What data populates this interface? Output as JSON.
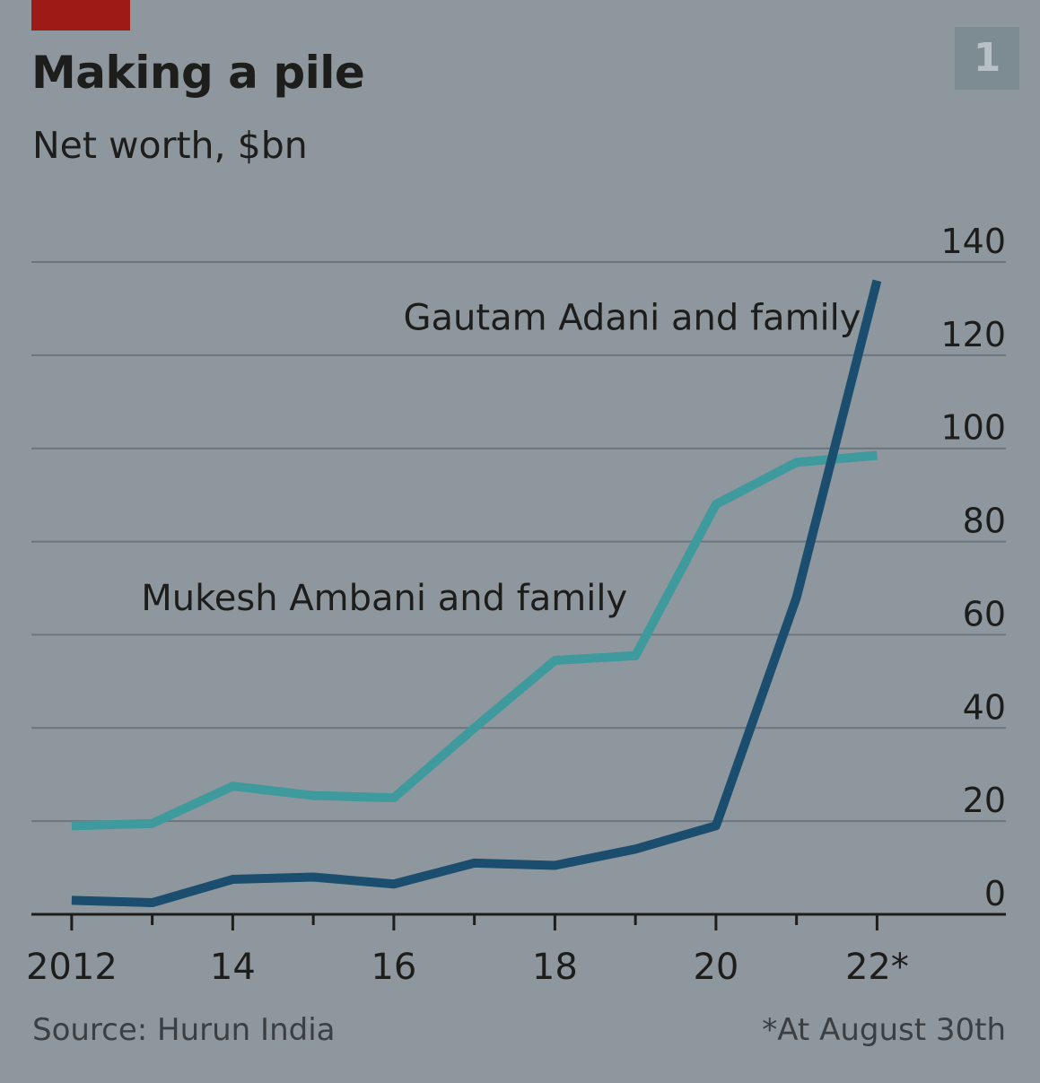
{
  "header": {
    "title": "Making a pile",
    "subtitle": "Net worth, $bn",
    "chart_number": "1"
  },
  "footer": {
    "source": "Source: Hurun India",
    "footnote": "*At August 30th"
  },
  "colors": {
    "adani": "#1b4d6e",
    "ambani": "#3e9a9c",
    "gridline": "#6c757c",
    "axis": "#1d1d1b",
    "brand_tag": "#9e1a17"
  },
  "chart_data": {
    "type": "line",
    "title": "Making a pile",
    "subtitle": "Net worth, $bn",
    "x": [
      2012,
      2013,
      2014,
      2015,
      2016,
      2017,
      2018,
      2019,
      2020,
      2021,
      2022
    ],
    "x_ticks": [
      2012,
      2013,
      2014,
      2015,
      2016,
      2017,
      2018,
      2019,
      2020,
      2021,
      2022
    ],
    "x_tick_labels": [
      {
        "x": 2012,
        "label": "2012"
      },
      {
        "x": 2014,
        "label": "14"
      },
      {
        "x": 2016,
        "label": "16"
      },
      {
        "x": 2018,
        "label": "18"
      },
      {
        "x": 2020,
        "label": "20"
      },
      {
        "x": 2022,
        "label": "22*"
      }
    ],
    "xlim": [
      2011.5,
      2023.6
    ],
    "y_ticks": [
      0,
      20,
      40,
      60,
      80,
      100,
      120,
      140
    ],
    "y_tick_labels": [
      "0",
      "20",
      "40",
      "60",
      "80",
      "100",
      "120",
      "140"
    ],
    "ylim": [
      0,
      140
    ],
    "grid": true,
    "y_axis_side": "right",
    "series": [
      {
        "name": "Gautam Adani and family",
        "color": "#1b4d6e",
        "values": [
          3,
          2.5,
          7.5,
          8,
          6.5,
          11,
          10.5,
          14,
          19,
          68,
          136
        ]
      },
      {
        "name": "Mukesh Ambani and family",
        "color": "#3e9a9c",
        "values": [
          19,
          19.5,
          27.5,
          25.5,
          25,
          40,
          54.5,
          55.5,
          88,
          97,
          98.5
        ]
      }
    ],
    "annotations": [
      {
        "series": "Gautam Adani and family",
        "text": "Gautam Adani and family"
      },
      {
        "series": "Mukesh Ambani and family",
        "text": "Mukesh Ambani and family"
      }
    ]
  }
}
